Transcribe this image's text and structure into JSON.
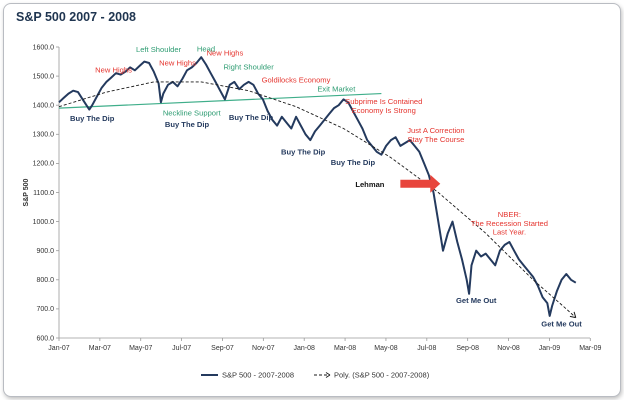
{
  "title": "S&P 500 2007 - 2008",
  "colors": {
    "series": "#243a5e",
    "trend": "#1a1a1a",
    "neckline": "#3fae8a",
    "red_text": "#e5352f",
    "green_text": "#2e9c72",
    "dark_text": "#243a5e",
    "arrow": "#e8453c"
  },
  "chart_data": {
    "type": "line",
    "title": "S&P 500 2007 - 2008",
    "ylabel": "S&P 500",
    "xlabel": "",
    "ylim": [
      600,
      1600
    ],
    "yticks": [
      "600.0",
      "700.0",
      "800.0",
      "900.0",
      "1000.0",
      "1100.0",
      "1200.0",
      "1300.0",
      "1400.0",
      "1500.0",
      "1600.0"
    ],
    "xticks": [
      "Jan-07",
      "Mar-07",
      "May-07",
      "Jul-07",
      "Sep-07",
      "Nov-07",
      "Jan-08",
      "Mar-08",
      "May-08",
      "Jul-08",
      "Sep-08",
      "Nov-08",
      "Jan-09",
      "Mar-09"
    ],
    "grid": false,
    "legend": "bottom",
    "series": [
      {
        "name": "S&P 500 - 2007-2008",
        "style": "solid",
        "points": [
          [
            0,
            1410
          ],
          [
            1,
            1425
          ],
          [
            2,
            1440
          ],
          [
            3,
            1450
          ],
          [
            4,
            1445
          ],
          [
            5,
            1420
          ],
          [
            6,
            1395
          ],
          [
            6.4,
            1385
          ],
          [
            7,
            1400
          ],
          [
            8,
            1430
          ],
          [
            9,
            1460
          ],
          [
            10,
            1480
          ],
          [
            11,
            1495
          ],
          [
            12,
            1510
          ],
          [
            13,
            1505
          ],
          [
            14,
            1515
          ],
          [
            15,
            1530
          ],
          [
            16,
            1520
          ],
          [
            17,
            1535
          ],
          [
            18,
            1550
          ],
          [
            19,
            1545
          ],
          [
            20,
            1515
          ],
          [
            21,
            1475
          ],
          [
            21.5,
            1410
          ],
          [
            22,
            1440
          ],
          [
            23,
            1470
          ],
          [
            24,
            1480
          ],
          [
            25,
            1465
          ],
          [
            26,
            1490
          ],
          [
            27,
            1520
          ],
          [
            28,
            1530
          ],
          [
            29,
            1545
          ],
          [
            30,
            1565
          ],
          [
            31,
            1540
          ],
          [
            32,
            1510
          ],
          [
            33,
            1480
          ],
          [
            34,
            1450
          ],
          [
            35,
            1420
          ],
          [
            36,
            1470
          ],
          [
            37,
            1480
          ],
          [
            38,
            1455
          ],
          [
            39,
            1470
          ],
          [
            40,
            1480
          ],
          [
            41,
            1470
          ],
          [
            42,
            1440
          ],
          [
            43,
            1420
          ],
          [
            44,
            1380
          ],
          [
            45,
            1350
          ],
          [
            46,
            1330
          ],
          [
            47,
            1360
          ],
          [
            48,
            1340
          ],
          [
            49,
            1320
          ],
          [
            50,
            1360
          ],
          [
            51,
            1330
          ],
          [
            52,
            1300
          ],
          [
            53,
            1280
          ],
          [
            54,
            1310
          ],
          [
            55,
            1330
          ],
          [
            56,
            1350
          ],
          [
            57,
            1370
          ],
          [
            58,
            1390
          ],
          [
            59,
            1400
          ],
          [
            60,
            1420
          ],
          [
            61,
            1410
          ],
          [
            62,
            1380
          ],
          [
            63,
            1350
          ],
          [
            64,
            1320
          ],
          [
            65,
            1280
          ],
          [
            66,
            1260
          ],
          [
            67,
            1240
          ],
          [
            68,
            1230
          ],
          [
            69,
            1260
          ],
          [
            70,
            1280
          ],
          [
            71,
            1290
          ],
          [
            72,
            1260
          ],
          [
            73,
            1270
          ],
          [
            74,
            1280
          ],
          [
            75,
            1260
          ],
          [
            76,
            1240
          ],
          [
            77,
            1200
          ],
          [
            78,
            1160
          ],
          [
            79,
            1100
          ],
          [
            80,
            1000
          ],
          [
            81,
            900
          ],
          [
            82,
            960
          ],
          [
            83,
            1000
          ],
          [
            84,
            930
          ],
          [
            85,
            870
          ],
          [
            86,
            800
          ],
          [
            86.5,
            752
          ],
          [
            87,
            850
          ],
          [
            88,
            900
          ],
          [
            89,
            880
          ],
          [
            90,
            890
          ],
          [
            91,
            870
          ],
          [
            92,
            850
          ],
          [
            93,
            900
          ],
          [
            94,
            920
          ],
          [
            95,
            930
          ],
          [
            96,
            900
          ],
          [
            97,
            870
          ],
          [
            98,
            850
          ],
          [
            99,
            830
          ],
          [
            100,
            810
          ],
          [
            101,
            780
          ],
          [
            102,
            740
          ],
          [
            103,
            720
          ],
          [
            103.5,
            676
          ],
          [
            104,
            710
          ],
          [
            105,
            760
          ],
          [
            106,
            800
          ],
          [
            107,
            820
          ],
          [
            108,
            800
          ],
          [
            109,
            790
          ]
        ]
      },
      {
        "name": "Poly. (S&P 500 - 2007-2008)",
        "style": "dashed",
        "points": [
          [
            0,
            1395
          ],
          [
            10,
            1445
          ],
          [
            20,
            1480
          ],
          [
            30,
            1480
          ],
          [
            40,
            1450
          ],
          [
            50,
            1395
          ],
          [
            60,
            1320
          ],
          [
            70,
            1220
          ],
          [
            80,
            1100
          ],
          [
            90,
            960
          ],
          [
            100,
            800
          ],
          [
            107,
            700
          ],
          [
            109,
            670
          ]
        ]
      }
    ],
    "neckline": {
      "label": "Neckline Support",
      "points": [
        [
          0,
          1390
        ],
        [
          68,
          1440
        ]
      ]
    },
    "annotations": [
      {
        "text": "New Highs",
        "color": "red",
        "x": 11.5,
        "y": 1512
      },
      {
        "text": "Left Shoulder",
        "color": "green",
        "x": 21,
        "y": 1582
      },
      {
        "text": "Head",
        "color": "green",
        "x": 31,
        "y": 1585
      },
      {
        "text": "New Highs",
        "color": "red",
        "x": 25,
        "y": 1537
      },
      {
        "text": "New Highs",
        "color": "red",
        "x": 35,
        "y": 1570
      },
      {
        "text": "Right Shoulder",
        "color": "green",
        "x": 40,
        "y": 1522
      },
      {
        "text": "Goldilocks Economy",
        "color": "red",
        "x": 50,
        "y": 1478
      },
      {
        "text": "Exit Market",
        "color": "green",
        "x": 58.5,
        "y": 1447
      },
      {
        "text": "Subprime Is Contained",
        "color": "red",
        "x": 68.5,
        "y": 1404
      },
      {
        "text": "Economy Is Strong",
        "color": "red",
        "x": 68.5,
        "y": 1374
      },
      {
        "text": "Just A Correction",
        "color": "red",
        "x": 79.5,
        "y": 1304
      },
      {
        "text": "Stay The Course",
        "color": "red",
        "x": 79.5,
        "y": 1274
      },
      {
        "text": "Neckline Support",
        "color": "green",
        "x": 28,
        "y": 1365
      },
      {
        "text": "Buy The Dip",
        "color": "dark",
        "x": 7,
        "y": 1345
      },
      {
        "text": "Buy The Dip",
        "color": "dark",
        "x": 27,
        "y": 1325
      },
      {
        "text": "Buy The Dip",
        "color": "dark",
        "x": 40.5,
        "y": 1350
      },
      {
        "text": "Buy The Dip",
        "color": "dark",
        "x": 51.5,
        "y": 1230
      },
      {
        "text": "Buy The Dip",
        "color": "dark",
        "x": 62,
        "y": 1195
      },
      {
        "text": "NBER:",
        "color": "red",
        "x": 95,
        "y": 1015
      },
      {
        "text": "The Recession Started",
        "color": "red",
        "x": 95,
        "y": 985
      },
      {
        "text": "Last Year.",
        "color": "red",
        "x": 95,
        "y": 955
      },
      {
        "text": "Get Me Out",
        "color": "dark",
        "x": 88,
        "y": 720
      },
      {
        "text": "Get Me Out",
        "color": "dark",
        "x": 106,
        "y": 640
      }
    ],
    "callout": {
      "text": "Lehman",
      "x": 62.5,
      "y": 1130,
      "arrow_from": 72,
      "arrow_to": 80
    }
  }
}
